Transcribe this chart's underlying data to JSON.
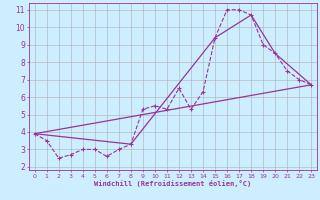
{
  "xlabel": "Windchill (Refroidissement éolien,°C)",
  "bg_color": "#cceeff",
  "grid_color": "#b0b0b0",
  "line_color": "#993399",
  "xlim": [
    -0.5,
    23.5
  ],
  "ylim": [
    1.8,
    11.4
  ],
  "xticks": [
    0,
    1,
    2,
    3,
    4,
    5,
    6,
    7,
    8,
    9,
    10,
    11,
    12,
    13,
    14,
    15,
    16,
    17,
    18,
    19,
    20,
    21,
    22,
    23
  ],
  "yticks": [
    2,
    3,
    4,
    5,
    6,
    7,
    8,
    9,
    10,
    11
  ],
  "series1_x": [
    0,
    1,
    2,
    3,
    4,
    5,
    6,
    7,
    8,
    9,
    10,
    11,
    12,
    13,
    14,
    15,
    16,
    17,
    18,
    19,
    20,
    21,
    22,
    23
  ],
  "series1_y": [
    3.9,
    3.5,
    2.5,
    2.7,
    3.0,
    3.0,
    2.6,
    3.0,
    3.3,
    5.3,
    5.5,
    5.3,
    6.5,
    5.3,
    6.3,
    9.4,
    11.0,
    11.0,
    10.7,
    9.0,
    8.5,
    7.5,
    7.0,
    6.7
  ],
  "series2_x": [
    0,
    23
  ],
  "series2_y": [
    3.9,
    6.7
  ],
  "series3_x": [
    0,
    8,
    15,
    18,
    20,
    23
  ],
  "series3_y": [
    3.9,
    3.3,
    9.4,
    10.7,
    8.5,
    6.7
  ]
}
